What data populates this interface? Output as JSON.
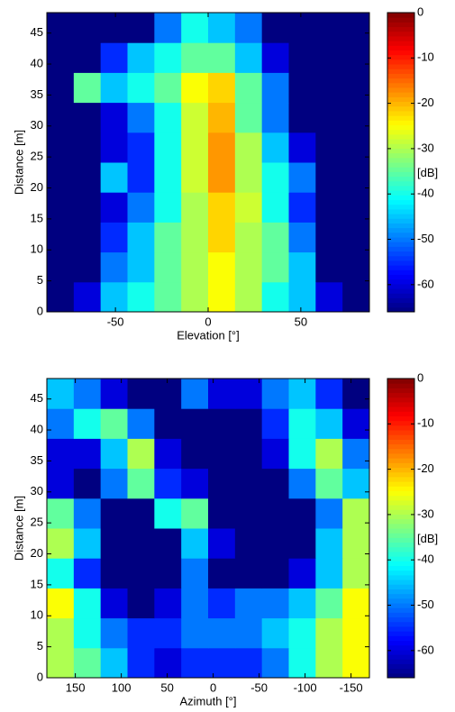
{
  "chart_data": [
    {
      "type": "heatmap",
      "xlabel": "Elevation [°]",
      "ylabel": "Distance [m]",
      "xlim": [
        -87,
        87
      ],
      "ylim": [
        0,
        48.3
      ],
      "xticks": [
        -50,
        0,
        50
      ],
      "yticks": [
        0,
        5,
        10,
        15,
        20,
        25,
        30,
        35,
        40,
        45
      ],
      "colormap": "jet",
      "colorbar": {
        "label": "[dB]",
        "clim": [
          -66,
          0
        ],
        "ticks": [
          0,
          -10,
          -20,
          -30,
          -40,
          -50,
          -60
        ]
      },
      "values": [
        [
          -66,
          -60,
          -45,
          -40,
          -35,
          -30,
          -25,
          -30,
          -40,
          -45,
          -60,
          -66
        ],
        [
          -66,
          -66,
          -50,
          -45,
          -35,
          -30,
          -25,
          -30,
          -35,
          -45,
          -66,
          -66
        ],
        [
          -66,
          -66,
          -55,
          -45,
          -35,
          -30,
          -22,
          -30,
          -35,
          -50,
          -66,
          -66
        ],
        [
          -66,
          -66,
          -60,
          -50,
          -40,
          -30,
          -22,
          -28,
          -40,
          -55,
          -66,
          -66
        ],
        [
          -66,
          -66,
          -45,
          -55,
          -40,
          -28,
          -18,
          -30,
          -40,
          -50,
          -66,
          -66
        ],
        [
          -66,
          -66,
          -60,
          -55,
          -40,
          -28,
          -18,
          -30,
          -45,
          -60,
          -66,
          -66
        ],
        [
          -66,
          -66,
          -60,
          -50,
          -40,
          -28,
          -20,
          -35,
          -50,
          -66,
          -66,
          -66
        ],
        [
          -66,
          -35,
          -45,
          -40,
          -35,
          -25,
          -22,
          -35,
          -50,
          -66,
          -66,
          -66
        ],
        [
          -66,
          -66,
          -55,
          -45,
          -40,
          -35,
          -35,
          -45,
          -60,
          -66,
          -66,
          -66
        ],
        [
          -66,
          -66,
          -66,
          -66,
          -50,
          -40,
          -45,
          -50,
          -66,
          -66,
          -66,
          -66
        ]
      ]
    },
    {
      "type": "heatmap",
      "xlabel": "Azimuth [°]",
      "ylabel": "Distance [m]",
      "xlim": [
        181,
        -170
      ],
      "ylim": [
        0,
        48.3
      ],
      "xticks": [
        150,
        100,
        50,
        0,
        -50,
        -100,
        -150
      ],
      "yticks": [
        0,
        5,
        10,
        15,
        20,
        25,
        30,
        35,
        40,
        45
      ],
      "colormap": "jet",
      "colorbar": {
        "label": "[dB]",
        "clim": [
          -66,
          0
        ],
        "ticks": [
          0,
          -10,
          -20,
          -30,
          -40,
          -50,
          -60
        ]
      },
      "values": [
        [
          -30,
          -35,
          -45,
          -55,
          -60,
          -55,
          -55,
          -55,
          -50,
          -40,
          -30,
          -25
        ],
        [
          -30,
          -40,
          -50,
          -55,
          -55,
          -50,
          -50,
          -50,
          -45,
          -40,
          -30,
          -25
        ],
        [
          -25,
          -40,
          -60,
          -66,
          -60,
          -50,
          -55,
          -50,
          -50,
          -45,
          -35,
          -25
        ],
        [
          -40,
          -55,
          -66,
          -66,
          -66,
          -50,
          -66,
          -66,
          -66,
          -60,
          -45,
          -30
        ],
        [
          -30,
          -45,
          -66,
          -66,
          -66,
          -45,
          -60,
          -66,
          -66,
          -66,
          -45,
          -30
        ],
        [
          -35,
          -50,
          -66,
          -66,
          -40,
          -35,
          -66,
          -66,
          -66,
          -66,
          -50,
          -30
        ],
        [
          -60,
          -66,
          -50,
          -35,
          -55,
          -60,
          -66,
          -66,
          -66,
          -50,
          -35,
          -45
        ],
        [
          -60,
          -60,
          -45,
          -30,
          -60,
          -66,
          -66,
          -66,
          -60,
          -40,
          -30,
          -50
        ],
        [
          -50,
          -40,
          -35,
          -50,
          -66,
          -66,
          -66,
          -66,
          -55,
          -40,
          -45,
          -60
        ],
        [
          -45,
          -50,
          -60,
          -66,
          -66,
          -50,
          -60,
          -60,
          -50,
          -45,
          -55,
          -66
        ]
      ]
    }
  ]
}
